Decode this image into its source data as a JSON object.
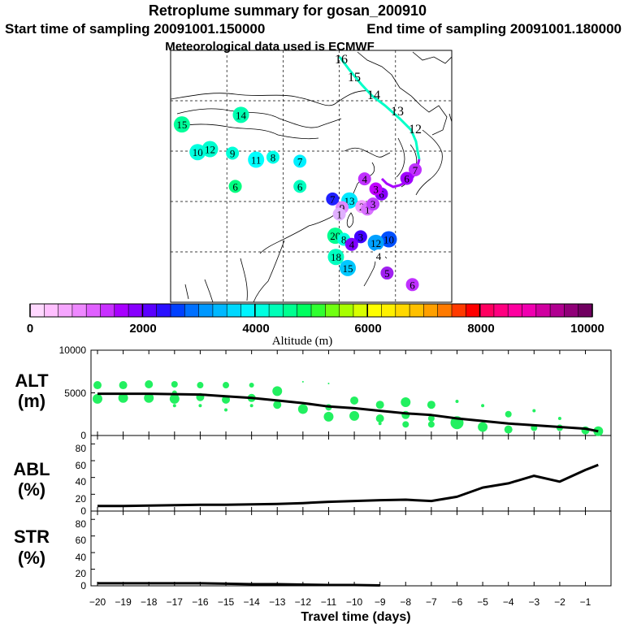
{
  "title": {
    "line1": "Retroplume summary for gosan_200910",
    "line2_left": "Start time of sampling 20091001.150000",
    "line2_right": "End time of sampling 20091001.180000",
    "line3": "Meteorological data used is ECMWF"
  },
  "colorbar": {
    "label": "Altitude (m)",
    "ticks": [
      "0",
      "2000",
      "4000",
      "6000",
      "8000",
      "10000"
    ],
    "colors": [
      "#ffd8ff",
      "#ffc0ff",
      "#f6a6ff",
      "#ee88ff",
      "#e060ff",
      "#c830ff",
      "#a800ff",
      "#8800ff",
      "#5a00ff",
      "#2a10ff",
      "#0040ff",
      "#0070ff",
      "#0098ff",
      "#00b8ff",
      "#00d8ff",
      "#00f4ff",
      "#00ffe0",
      "#00ffb8",
      "#00ff90",
      "#00ff60",
      "#30ff30",
      "#70ff10",
      "#a8ff00",
      "#d8ff00",
      "#ffff00",
      "#fff000",
      "#ffd800",
      "#ffc000",
      "#ffa000",
      "#ff7a00",
      "#ff3a00",
      "#ff0000",
      "#ff0060",
      "#ff0080",
      "#ff00a0",
      "#f000b0",
      "#d000a0",
      "#b00090",
      "#900078",
      "#700060"
    ]
  },
  "chart_data": [
    {
      "type": "map-trajectory",
      "name": "retroplume-map",
      "trajectory_day_labels": [
        "16",
        "15",
        "14",
        "13",
        "12"
      ],
      "cluster_labels": [
        {
          "t": "14",
          "c": "#00ffb0",
          "lat": 47.2,
          "lon": 102.5
        },
        {
          "t": "15",
          "c": "#00ff9a",
          "lat": 45.3,
          "lon": 92.0
        },
        {
          "t": "10",
          "c": "#00ffe0",
          "lat": 39.8,
          "lon": 94.8
        },
        {
          "t": "12",
          "c": "#00ffd0",
          "lat": 40.4,
          "lon": 97.0
        },
        {
          "t": "9",
          "c": "#00ffd8",
          "lat": 39.6,
          "lon": 101.0
        },
        {
          "t": "11",
          "c": "#00ffff",
          "lat": 38.3,
          "lon": 105.2
        },
        {
          "t": "8",
          "c": "#00ffe8",
          "lat": 38.8,
          "lon": 108.2
        },
        {
          "t": "7",
          "c": "#00f0ff",
          "lat": 38.0,
          "lon": 113.0
        },
        {
          "t": "6",
          "c": "#00ff80",
          "lat": 33.0,
          "lon": 101.5
        },
        {
          "t": "6",
          "c": "#00ffc0",
          "lat": 33.0,
          "lon": 113.0
        },
        {
          "t": "4",
          "c": "#c030ff",
          "lat": 34.5,
          "lon": 124.5
        },
        {
          "t": "13",
          "c": "#00e8ff",
          "lat": 30.2,
          "lon": 121.8
        },
        {
          "t": "7",
          "c": "#2020ff",
          "lat": 30.5,
          "lon": 118.8
        },
        {
          "t": "6",
          "c": "#8800ff",
          "lat": 31.5,
          "lon": 127.5
        },
        {
          "t": "3",
          "c": "#c000ff",
          "lat": 32.5,
          "lon": 126.5
        },
        {
          "t": "9",
          "c": "#e088ff",
          "lat": 28.8,
          "lon": 120.5
        },
        {
          "t": "2",
          "c": "#f0a0ff",
          "lat": 29.0,
          "lon": 124.0
        },
        {
          "t": "1",
          "c": "#d870ff",
          "lat": 28.5,
          "lon": 125.0
        },
        {
          "t": "3",
          "c": "#c040ff",
          "lat": 29.5,
          "lon": 126.0
        },
        {
          "t": "1",
          "c": "#e0b0ff",
          "lat": 27.5,
          "lon": 120.0
        },
        {
          "t": "10",
          "c": "#0050ff",
          "lat": 22.5,
          "lon": 128.8
        },
        {
          "t": "12",
          "c": "#00a0ff",
          "lat": 21.8,
          "lon": 126.5
        },
        {
          "t": "3",
          "c": "#4000ff",
          "lat": 23.0,
          "lon": 123.8
        },
        {
          "t": "20",
          "c": "#00ff90",
          "lat": 23.2,
          "lon": 119.3
        },
        {
          "t": "8",
          "c": "#00ffe0",
          "lat": 22.5,
          "lon": 120.8
        },
        {
          "t": "4",
          "c": "#8000ff",
          "lat": 21.5,
          "lon": 122.2
        },
        {
          "t": "18",
          "c": "#00ffc0",
          "lat": 19.0,
          "lon": 119.4
        },
        {
          "t": "15",
          "c": "#00c8ff",
          "lat": 16.8,
          "lon": 121.5
        },
        {
          "t": "4",
          "c": "#ffffff",
          "lat": 19.2,
          "lon": 127.0
        },
        {
          "t": "5",
          "c": "#a020f0",
          "lat": 15.8,
          "lon": 128.5
        },
        {
          "t": "6",
          "c": "#c030ff",
          "lat": 13.5,
          "lon": 133.0
        },
        {
          "t": "7",
          "c": "#c030ff",
          "lat": 36.3,
          "lon": 133.5
        },
        {
          "t": "6",
          "c": "#a000ff",
          "lat": 34.6,
          "lon": 132.0
        }
      ]
    },
    {
      "type": "scatter+line",
      "name": "ALT",
      "label_line1": "ALT",
      "label_line2": "(m)",
      "ylim": [
        0,
        10000
      ],
      "y_ticks": [
        "10000",
        "5000",
        "0"
      ],
      "line": {
        "x": [
          -20,
          -19,
          -18,
          -17,
          -16,
          -15,
          -14,
          -13,
          -12,
          -11,
          -10,
          -9,
          -8,
          -7,
          -6,
          -5,
          -4,
          -3,
          -2,
          -1,
          -0.5
        ],
        "y": [
          4900,
          4900,
          4900,
          4850,
          4800,
          4600,
          4400,
          4100,
          3800,
          3400,
          3200,
          2900,
          2600,
          2400,
          2000,
          1700,
          1400,
          1200,
          1000,
          800,
          500
        ]
      },
      "points": [
        {
          "x": -20,
          "y": 5900,
          "s": 5
        },
        {
          "x": -20,
          "y": 4300,
          "s": 6
        },
        {
          "x": -19,
          "y": 5900,
          "s": 5
        },
        {
          "x": -19,
          "y": 4400,
          "s": 6
        },
        {
          "x": -18,
          "y": 6000,
          "s": 5
        },
        {
          "x": -18,
          "y": 4400,
          "s": 6
        },
        {
          "x": -17,
          "y": 6000,
          "s": 4
        },
        {
          "x": -17,
          "y": 5000,
          "s": 3
        },
        {
          "x": -17,
          "y": 4300,
          "s": 6
        },
        {
          "x": -17,
          "y": 3500,
          "s": 2
        },
        {
          "x": -16,
          "y": 5900,
          "s": 4
        },
        {
          "x": -16,
          "y": 4500,
          "s": 5
        },
        {
          "x": -16,
          "y": 3500,
          "s": 2
        },
        {
          "x": -15,
          "y": 5900,
          "s": 4
        },
        {
          "x": -15,
          "y": 4200,
          "s": 5
        },
        {
          "x": -15,
          "y": 3000,
          "s": 2
        },
        {
          "x": -14,
          "y": 5900,
          "s": 3
        },
        {
          "x": -14,
          "y": 4400,
          "s": 5
        },
        {
          "x": -14,
          "y": 3500,
          "s": 2
        },
        {
          "x": -13,
          "y": 5200,
          "s": 6
        },
        {
          "x": -13,
          "y": 3600,
          "s": 5
        },
        {
          "x": -12,
          "y": 6300,
          "s": 1
        },
        {
          "x": -12,
          "y": 3100,
          "s": 6
        },
        {
          "x": -11,
          "y": 6100,
          "s": 1
        },
        {
          "x": -11,
          "y": 3300,
          "s": 4
        },
        {
          "x": -11,
          "y": 2200,
          "s": 6
        },
        {
          "x": -10,
          "y": 4100,
          "s": 5
        },
        {
          "x": -10,
          "y": 2300,
          "s": 6
        },
        {
          "x": -9,
          "y": 3600,
          "s": 5
        },
        {
          "x": -9,
          "y": 2000,
          "s": 5
        },
        {
          "x": -9,
          "y": 1400,
          "s": 2
        },
        {
          "x": -8,
          "y": 3900,
          "s": 6
        },
        {
          "x": -8,
          "y": 2400,
          "s": 5
        },
        {
          "x": -8,
          "y": 1300,
          "s": 4
        },
        {
          "x": -7,
          "y": 3600,
          "s": 5
        },
        {
          "x": -7,
          "y": 2000,
          "s": 4
        },
        {
          "x": -7,
          "y": 1300,
          "s": 4
        },
        {
          "x": -6,
          "y": 4000,
          "s": 2
        },
        {
          "x": -6,
          "y": 1500,
          "s": 8
        },
        {
          "x": -5,
          "y": 3500,
          "s": 2
        },
        {
          "x": -5,
          "y": 1000,
          "s": 6
        },
        {
          "x": -4,
          "y": 2500,
          "s": 4
        },
        {
          "x": -4,
          "y": 700,
          "s": 5
        },
        {
          "x": -3,
          "y": 2900,
          "s": 2
        },
        {
          "x": -3,
          "y": 900,
          "s": 4
        },
        {
          "x": -2,
          "y": 2000,
          "s": 2
        },
        {
          "x": -2,
          "y": 900,
          "s": 4
        },
        {
          "x": -1,
          "y": 600,
          "s": 5
        },
        {
          "x": -0.5,
          "y": 500,
          "s": 6
        }
      ]
    },
    {
      "type": "line",
      "name": "ABL",
      "label_line1": "ABL",
      "label_line2": "(%)",
      "ylim": [
        0,
        90
      ],
      "y_ticks": [
        "80",
        "60",
        "40",
        "20",
        "0"
      ],
      "x": [
        -20,
        -19,
        -18,
        -17,
        -16,
        -15,
        -14,
        -13,
        -12,
        -11,
        -10,
        -9,
        -8,
        -7,
        -6,
        -5,
        -4,
        -3,
        -2,
        -1,
        -0.5
      ],
      "y": [
        6,
        6,
        6.5,
        7,
        7.5,
        7.5,
        8,
        8.5,
        9.5,
        11,
        12,
        13,
        13.5,
        12,
        17,
        28,
        33,
        42,
        35,
        49,
        55
      ]
    },
    {
      "type": "line",
      "name": "STR",
      "label_line1": "STR",
      "label_line2": "(%)",
      "ylim": [
        0,
        90
      ],
      "y_ticks": [
        "80",
        "60",
        "40",
        "20",
        "0"
      ],
      "x": [
        -20,
        -19,
        -18,
        -17,
        -16,
        -15,
        -14,
        -13,
        -12,
        -11,
        -10,
        -9
      ],
      "y": [
        3,
        3,
        3,
        3,
        3,
        2.5,
        2,
        2,
        1.5,
        1,
        1,
        0.5
      ],
      "xlabel": "Travel time (days)",
      "x_ticks": [
        "−20",
        "−19",
        "−18",
        "−17",
        "−16",
        "−15",
        "−14",
        "−13",
        "−12",
        "−11",
        "−10",
        "−9",
        "−8",
        "−7",
        "−6",
        "−5",
        "−4",
        "−3",
        "−2",
        "−1"
      ]
    }
  ]
}
